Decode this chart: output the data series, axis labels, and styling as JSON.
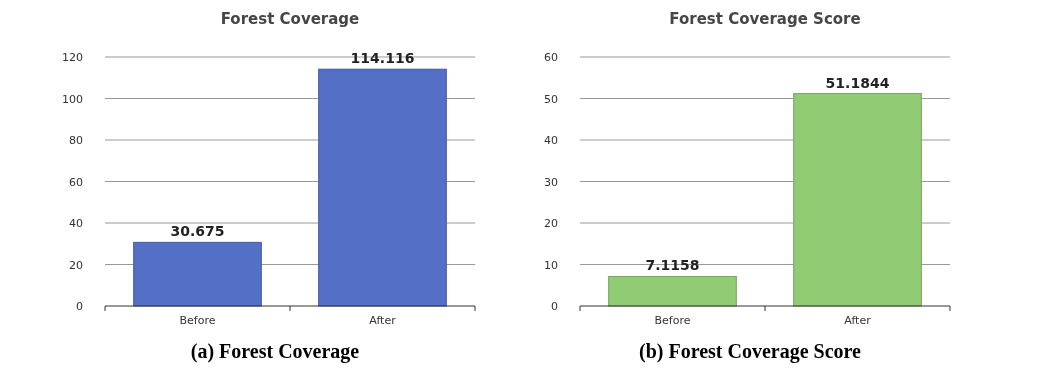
{
  "chart_data": [
    {
      "type": "bar",
      "title": "Forest Coverage",
      "categories": [
        "Before",
        "After"
      ],
      "values": [
        30.675,
        114.116
      ],
      "color": "#5470c6",
      "ylim": [
        0,
        120
      ],
      "yticks": [
        0,
        20,
        40,
        60,
        80,
        100,
        120
      ],
      "grid": "y",
      "data_labels": true,
      "annotations": [
        "(a) Forest Coverage"
      ]
    },
    {
      "type": "bar",
      "title": "Forest Coverage Score",
      "categories": [
        "Before",
        "After"
      ],
      "values": [
        7.1158,
        51.1844
      ],
      "color": "#91cc75",
      "ylim": [
        0,
        60
      ],
      "yticks": [
        0,
        10,
        20,
        30,
        40,
        50,
        60
      ],
      "grid": "y",
      "data_labels": true,
      "annotations": [
        "(b) Forest Coverage Score"
      ]
    }
  ]
}
